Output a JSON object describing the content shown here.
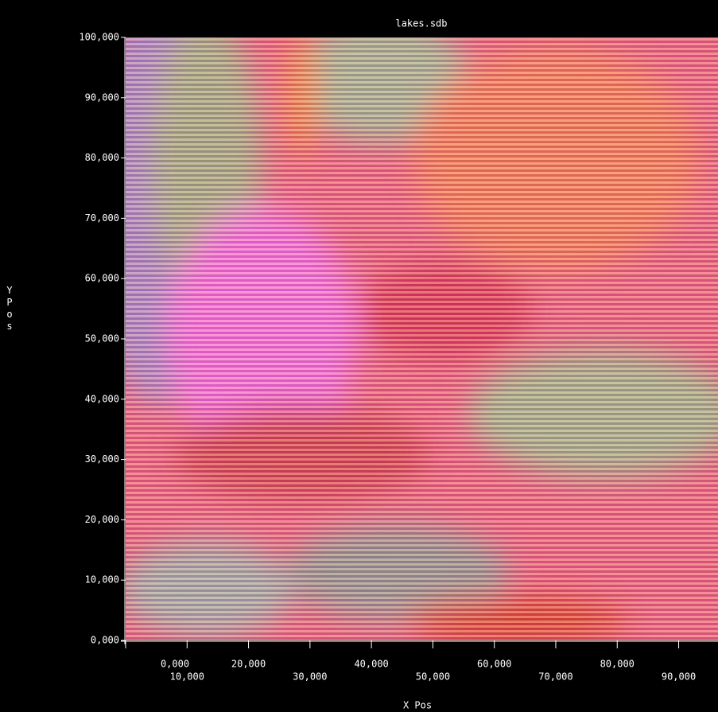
{
  "chart_data": {
    "type": "image",
    "title": "lakes.sdb",
    "x_label": "X Pos",
    "y_label": "Y Pos",
    "xlim": [
      0,
      96400
    ],
    "ylim": [
      0,
      100000
    ],
    "xticks": [
      {
        "value": 0,
        "label": "0,000"
      },
      {
        "value": 10000,
        "label": "10,000"
      },
      {
        "value": 20000,
        "label": "20,000"
      },
      {
        "value": 30000,
        "label": "30,000"
      },
      {
        "value": 40000,
        "label": "40,000"
      },
      {
        "value": 50000,
        "label": "50,000"
      },
      {
        "value": 60000,
        "label": "60,000"
      },
      {
        "value": 70000,
        "label": "70,000"
      },
      {
        "value": 80000,
        "label": "80,000"
      },
      {
        "value": 90000,
        "label": "90,000"
      }
    ],
    "yticks": [
      {
        "value": 0,
        "label": "0,000"
      },
      {
        "value": 10000,
        "label": "10,000"
      },
      {
        "value": 20000,
        "label": "20,000"
      },
      {
        "value": 30000,
        "label": "30,000"
      },
      {
        "value": 40000,
        "label": "40,000"
      },
      {
        "value": 50000,
        "label": "50,000"
      },
      {
        "value": 60000,
        "label": "60,000"
      },
      {
        "value": 70000,
        "label": "70,000"
      },
      {
        "value": 80000,
        "label": "80,000"
      },
      {
        "value": 90000,
        "label": "90,000"
      },
      {
        "value": 100000,
        "label": "100,000"
      }
    ]
  }
}
